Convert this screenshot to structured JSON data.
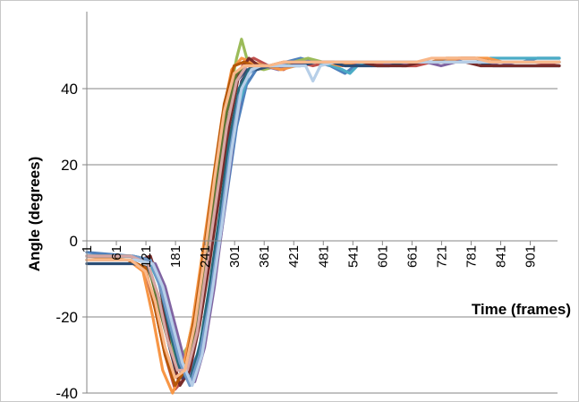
{
  "chart_data": {
    "type": "line",
    "title": "",
    "xlabel": "Time (frames)",
    "ylabel": "Angle (degrees)",
    "xlim": [
      1,
      960
    ],
    "ylim": [
      -40,
      60
    ],
    "y_ticks": [
      -40,
      -20,
      0,
      20,
      40
    ],
    "x_ticks": [
      1,
      61,
      121,
      181,
      241,
      301,
      361,
      421,
      481,
      541,
      601,
      661,
      721,
      781,
      841,
      901
    ],
    "grid": "horizontal",
    "legend": "none",
    "series": [
      {
        "color": "#4f81bd",
        "x": [
          1,
          90,
          125,
          145,
          165,
          185,
          205,
          225,
          245,
          265,
          285,
          305,
          325,
          345,
          375,
          405,
          435,
          465,
          495,
          525,
          555,
          585,
          615,
          645,
          675,
          705,
          735,
          765,
          795,
          825,
          855,
          885,
          915,
          960
        ],
        "y": [
          -3,
          -4,
          -5,
          -10,
          -20,
          -30,
          -36,
          -30,
          -20,
          -6,
          12,
          30,
          41,
          45,
          46,
          47,
          48,
          47,
          46,
          44,
          47,
          47,
          46,
          47,
          47,
          47,
          48,
          47,
          47,
          47,
          47,
          47,
          48,
          48
        ]
      },
      {
        "color": "#c0504d",
        "x": [
          1,
          90,
          120,
          140,
          160,
          180,
          200,
          220,
          240,
          260,
          280,
          300,
          320,
          340,
          370,
          400,
          430,
          460,
          490,
          520,
          550,
          580,
          610,
          640,
          670,
          700,
          730,
          760,
          790,
          820,
          850,
          880,
          910,
          960
        ],
        "y": [
          -5,
          -5,
          -8,
          -18,
          -30,
          -39,
          -36,
          -24,
          -10,
          8,
          26,
          40,
          47,
          48,
          46,
          45,
          47,
          46,
          47,
          46,
          47,
          46,
          47,
          46,
          46,
          47,
          47,
          48,
          48,
          47,
          47,
          47,
          47,
          46
        ]
      },
      {
        "color": "#9bbb59",
        "x": [
          1,
          90,
          125,
          145,
          165,
          185,
          205,
          225,
          245,
          265,
          285,
          305,
          315,
          330,
          360,
          390,
          420,
          450,
          480,
          510,
          540,
          570,
          600,
          630,
          660,
          690,
          720,
          750,
          780,
          810,
          840,
          870,
          900,
          960
        ],
        "y": [
          -4,
          -4,
          -6,
          -14,
          -24,
          -32,
          -28,
          -16,
          0,
          18,
          35,
          48,
          53,
          46,
          45,
          46,
          47,
          48,
          47,
          47,
          47,
          47,
          47,
          47,
          47,
          47,
          47,
          47,
          47,
          47,
          47,
          47,
          47,
          47
        ]
      },
      {
        "color": "#8064a2",
        "x": [
          1,
          110,
          140,
          160,
          180,
          200,
          220,
          240,
          260,
          280,
          300,
          320,
          340,
          360,
          390,
          420,
          450,
          480,
          510,
          540,
          570,
          600,
          630,
          660,
          690,
          720,
          750,
          780,
          810,
          840,
          870,
          900,
          930,
          960
        ],
        "y": [
          -5,
          -5,
          -6,
          -12,
          -22,
          -32,
          -37,
          -28,
          -12,
          8,
          28,
          42,
          46,
          46,
          45,
          46,
          47,
          47,
          46,
          47,
          47,
          47,
          46,
          47,
          47,
          46,
          47,
          47,
          47,
          46,
          47,
          47,
          47,
          47
        ]
      },
      {
        "color": "#4bacc6",
        "x": [
          1,
          90,
          130,
          150,
          170,
          190,
          210,
          230,
          250,
          270,
          290,
          310,
          330,
          350,
          380,
          410,
          440,
          470,
          500,
          520,
          535,
          550,
          580,
          610,
          640,
          670,
          700,
          730,
          760,
          790,
          820,
          850,
          880,
          960
        ],
        "y": [
          -4,
          -4,
          -6,
          -12,
          -22,
          -32,
          -38,
          -32,
          -18,
          0,
          20,
          36,
          44,
          46,
          46,
          47,
          47,
          47,
          46,
          45,
          44,
          46,
          47,
          47,
          47,
          47,
          47,
          47,
          47,
          47,
          48,
          48,
          48,
          48
        ]
      },
      {
        "color": "#f79646",
        "x": [
          1,
          85,
          115,
          135,
          155,
          175,
          195,
          215,
          235,
          255,
          275,
          295,
          315,
          335,
          365,
          395,
          425,
          455,
          485,
          515,
          545,
          575,
          605,
          635,
          665,
          695,
          725,
          755,
          785,
          815,
          845,
          875,
          905,
          960
        ],
        "y": [
          -4,
          -5,
          -8,
          -20,
          -34,
          -40,
          -34,
          -22,
          -4,
          14,
          32,
          45,
          48,
          47,
          46,
          45,
          46,
          47,
          47,
          46,
          47,
          47,
          47,
          47,
          47,
          47,
          47,
          48,
          48,
          48,
          47,
          47,
          47,
          47
        ]
      },
      {
        "color": "#2c4d75",
        "x": [
          1,
          95,
          125,
          145,
          165,
          185,
          205,
          225,
          245,
          265,
          285,
          305,
          325,
          345,
          375,
          405,
          435,
          465,
          495,
          525,
          555,
          585,
          615,
          645,
          675,
          705,
          735,
          765,
          795,
          825,
          855,
          885,
          915,
          960
        ],
        "y": [
          -6,
          -6,
          -7,
          -14,
          -26,
          -36,
          -36,
          -24,
          -8,
          12,
          30,
          42,
          45,
          45,
          46,
          46,
          46,
          47,
          47,
          46,
          46,
          46,
          46,
          47,
          47,
          47,
          47,
          47,
          47,
          46,
          46,
          46,
          46,
          46
        ]
      },
      {
        "color": "#772c2a",
        "x": [
          1,
          110,
          130,
          150,
          170,
          190,
          210,
          230,
          250,
          270,
          290,
          310,
          330,
          350,
          380,
          410,
          440,
          470,
          500,
          530,
          560,
          590,
          620,
          650,
          680,
          710,
          740,
          770,
          800,
          830,
          860,
          890,
          920,
          960
        ],
        "y": [
          -5,
          -5,
          -4,
          -12,
          -28,
          -38,
          -34,
          -22,
          -6,
          12,
          30,
          44,
          48,
          46,
          46,
          46,
          47,
          47,
          47,
          47,
          47,
          46,
          46,
          46,
          47,
          47,
          47,
          47,
          46,
          46,
          46,
          46,
          46,
          46
        ]
      },
      {
        "color": "#5f7530",
        "x": [
          1,
          90,
          125,
          145,
          165,
          185,
          205,
          225,
          245,
          265,
          285,
          305,
          325,
          345,
          375,
          405,
          435,
          465,
          495,
          525,
          555,
          585,
          615,
          645,
          675,
          705,
          735,
          765,
          795,
          825,
          855,
          885,
          915,
          960
        ],
        "y": [
          -4,
          -4,
          -6,
          -16,
          -26,
          -34,
          -32,
          -20,
          -4,
          16,
          34,
          44,
          46,
          46,
          46,
          47,
          47,
          47,
          47,
          47,
          47,
          47,
          47,
          47,
          47,
          47,
          47,
          47,
          47,
          47,
          47,
          47,
          47,
          47
        ]
      },
      {
        "color": "#4d3b62",
        "x": [
          1,
          100,
          135,
          155,
          175,
          195,
          215,
          235,
          255,
          275,
          295,
          315,
          335,
          355,
          385,
          415,
          445,
          475,
          505,
          535,
          565,
          595,
          625,
          655,
          685,
          715,
          745,
          775,
          805,
          835,
          865,
          895,
          925,
          960
        ],
        "y": [
          -5,
          -5,
          -6,
          -14,
          -26,
          -36,
          -36,
          -26,
          -10,
          8,
          28,
          42,
          46,
          46,
          46,
          46,
          47,
          47,
          47,
          47,
          47,
          47,
          47,
          47,
          47,
          47,
          47,
          47,
          47,
          47,
          47,
          47,
          47,
          47
        ]
      },
      {
        "color": "#276a7c",
        "x": [
          1,
          95,
          130,
          150,
          170,
          190,
          210,
          230,
          250,
          270,
          290,
          310,
          330,
          350,
          380,
          410,
          440,
          470,
          500,
          530,
          560,
          590,
          620,
          650,
          680,
          710,
          740,
          770,
          800,
          830,
          860,
          890,
          920,
          960
        ],
        "y": [
          -4,
          -4,
          -5,
          -12,
          -24,
          -34,
          -37,
          -28,
          -12,
          6,
          26,
          40,
          45,
          46,
          46,
          47,
          47,
          47,
          47,
          47,
          47,
          47,
          47,
          47,
          47,
          47,
          47,
          47,
          47,
          47,
          47,
          47,
          47,
          47
        ]
      },
      {
        "color": "#b65708",
        "x": [
          1,
          85,
          120,
          140,
          160,
          180,
          200,
          220,
          240,
          260,
          280,
          300,
          320,
          340,
          370,
          400,
          430,
          460,
          490,
          520,
          550,
          580,
          610,
          640,
          670,
          700,
          730,
          760,
          790,
          820,
          850,
          880,
          910,
          960
        ],
        "y": [
          -5,
          -5,
          -7,
          -18,
          -30,
          -38,
          -34,
          -20,
          -2,
          18,
          36,
          46,
          47,
          46,
          46,
          47,
          47,
          47,
          47,
          47,
          47,
          47,
          47,
          47,
          47,
          47,
          48,
          48,
          48,
          47,
          47,
          47,
          47,
          47
        ]
      },
      {
        "color": "#729aca",
        "x": [
          1,
          95,
          130,
          150,
          170,
          190,
          210,
          230,
          250,
          270,
          290,
          310,
          330,
          350,
          380,
          410,
          440,
          470,
          500,
          530,
          560,
          590,
          620,
          650,
          680,
          710,
          740,
          770,
          800,
          830,
          860,
          890,
          920,
          960
        ],
        "y": [
          -4,
          -4,
          -5,
          -12,
          -22,
          -32,
          -38,
          -30,
          -16,
          2,
          22,
          38,
          44,
          46,
          46,
          47,
          47,
          47,
          47,
          47,
          47,
          47,
          47,
          47,
          47,
          47,
          47,
          47,
          47,
          47,
          47,
          47,
          47,
          47
        ]
      },
      {
        "color": "#d7a6a5",
        "x": [
          1,
          90,
          125,
          145,
          165,
          185,
          205,
          225,
          245,
          265,
          285,
          305,
          325,
          345,
          375,
          405,
          435,
          465,
          495,
          525,
          555,
          585,
          615,
          645,
          675,
          705,
          735,
          765,
          795,
          825,
          855,
          885,
          915,
          960
        ],
        "y": [
          -4,
          -4,
          -6,
          -14,
          -26,
          -34,
          -34,
          -24,
          -6,
          12,
          30,
          42,
          46,
          46,
          46,
          47,
          47,
          47,
          47,
          47,
          47,
          47,
          47,
          47,
          47,
          47,
          47,
          47,
          47,
          47,
          47,
          47,
          47,
          47
        ]
      },
      {
        "color": "#b7cfe8",
        "x": [
          1,
          100,
          135,
          155,
          175,
          195,
          215,
          235,
          255,
          275,
          295,
          315,
          335,
          355,
          385,
          415,
          445,
          460,
          475,
          505,
          535,
          565,
          595,
          625,
          655,
          685,
          715,
          745,
          775,
          805,
          835,
          865,
          895,
          960
        ],
        "y": [
          -5,
          -5,
          -6,
          -12,
          -22,
          -32,
          -38,
          -30,
          -14,
          4,
          24,
          40,
          45,
          46,
          46,
          46,
          46,
          42,
          46,
          47,
          47,
          47,
          47,
          47,
          47,
          47,
          47,
          47,
          47,
          47,
          47,
          47,
          47,
          47
        ]
      },
      {
        "color": "#f9b88a",
        "x": [
          1,
          90,
          120,
          140,
          160,
          180,
          200,
          220,
          240,
          260,
          280,
          300,
          320,
          340,
          370,
          400,
          430,
          460,
          490,
          520,
          550,
          580,
          610,
          640,
          670,
          700,
          730,
          760,
          790,
          820,
          850,
          880,
          910,
          960
        ],
        "y": [
          -5,
          -5,
          -8,
          -16,
          -28,
          -36,
          -34,
          -22,
          -4,
          16,
          34,
          44,
          46,
          46,
          46,
          47,
          47,
          47,
          47,
          47,
          47,
          47,
          47,
          47,
          47,
          48,
          48,
          48,
          48,
          47,
          47,
          47,
          47,
          47
        ]
      }
    ]
  }
}
